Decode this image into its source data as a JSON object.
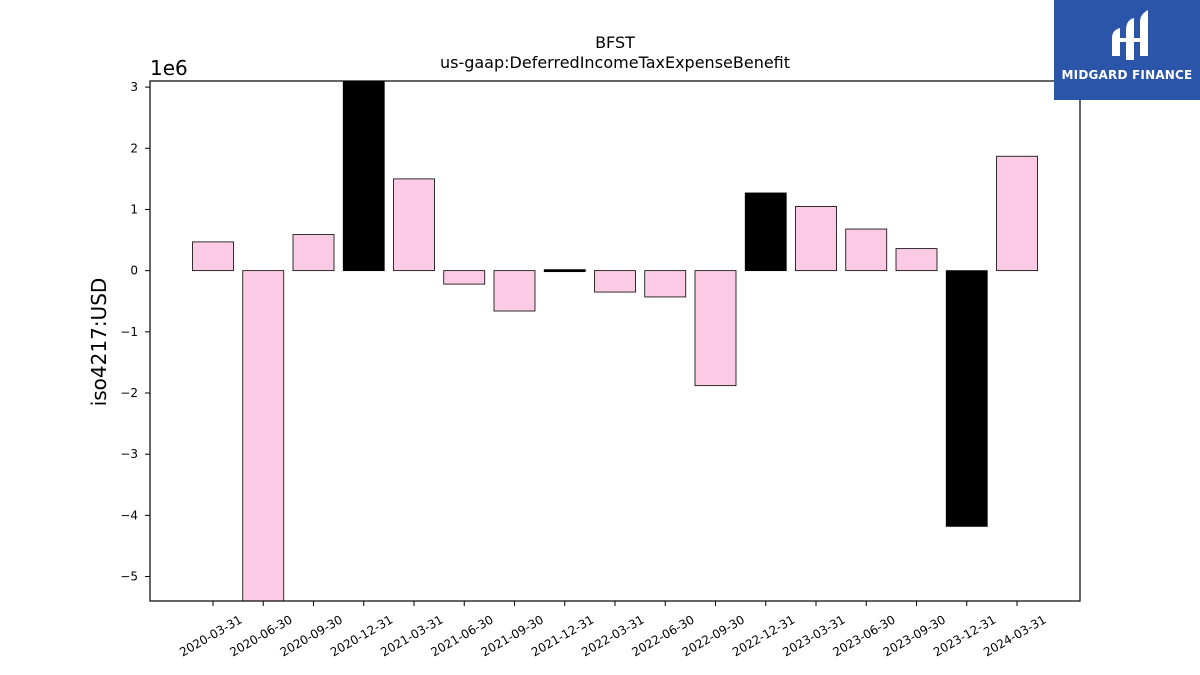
{
  "logo": {
    "text": "MIDGARD FINANCE",
    "background": "#2a55a8"
  },
  "chart_data": {
    "type": "bar",
    "title": "BFST",
    "subtitle": "us-gaap:DeferredIncomeTaxExpenseBenefit",
    "ylabel": "iso4217:USD",
    "y_scale_label": "1e6",
    "ylim": [
      -5.4,
      3.1
    ],
    "yticks": [
      3,
      2,
      1,
      0,
      -1,
      -2,
      -3,
      -4,
      -5
    ],
    "ytick_labels": [
      "3",
      "2",
      "1",
      "0",
      "−1",
      "−2",
      "−3",
      "−4",
      "−5"
    ],
    "grid": false,
    "categories": [
      "2020-03-31",
      "2020-06-30",
      "2020-09-30",
      "2020-12-31",
      "2021-03-31",
      "2021-06-30",
      "2021-09-30",
      "2021-12-31",
      "2022-03-31",
      "2022-06-30",
      "2022-09-30",
      "2022-12-31",
      "2023-03-31",
      "2023-06-30",
      "2023-09-30",
      "2023-12-31",
      "2024-03-31"
    ],
    "values": [
      0.47,
      -5.4,
      0.59,
      3.1,
      1.5,
      -0.22,
      -0.66,
      -0.02,
      -0.35,
      -0.43,
      -1.88,
      1.27,
      1.05,
      0.68,
      0.36,
      -4.18,
      1.87
    ],
    "bar_colors": [
      "#fbcae5",
      "#fbcae5",
      "#fbcae5",
      "#000000",
      "#fbcae5",
      "#fbcae5",
      "#fbcae5",
      "#000000",
      "#fbcae5",
      "#fbcae5",
      "#fbcae5",
      "#000000",
      "#fbcae5",
      "#fbcae5",
      "#fbcae5",
      "#000000",
      "#fbcae5"
    ]
  }
}
